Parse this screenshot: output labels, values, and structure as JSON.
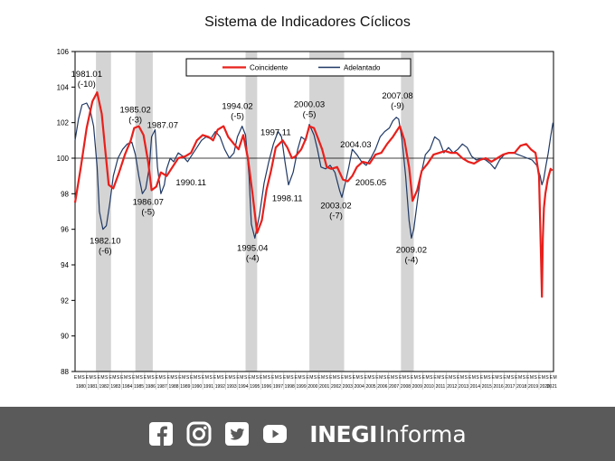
{
  "chart_data": {
    "type": "line",
    "title": "Sistema de Indicadores Cíclicos",
    "ylim": [
      88,
      106
    ],
    "yticks": [
      88,
      90,
      92,
      94,
      96,
      98,
      100,
      102,
      104,
      106
    ],
    "reference_line": 100,
    "legend": {
      "placement": "top-center",
      "entries": [
        "Coincidente",
        "Adelantado"
      ]
    },
    "colors": {
      "coincidente": "#e8201c",
      "adelantado": "#1f3864",
      "recession_band": "#d4d4d4"
    },
    "x_range": [
      1980.0,
      2021.25
    ],
    "years": [
      "1980",
      "1981",
      "1982",
      "1983",
      "1984",
      "1985",
      "1986",
      "1987",
      "1988",
      "1989",
      "1990",
      "1991",
      "1992",
      "1993",
      "1994",
      "1995",
      "1996",
      "1997",
      "1998",
      "1999",
      "2000",
      "2001",
      "2002",
      "2003",
      "2004",
      "2005",
      "2006",
      "2007",
      "2008",
      "2009",
      "2010",
      "2011",
      "2012",
      "2013",
      "2014",
      "2015",
      "2016",
      "2017",
      "2018",
      "2019",
      "2020",
      "2021"
    ],
    "month_letters": [
      "E",
      "M",
      "S"
    ],
    "last_year_letters": [
      "E",
      "M"
    ],
    "recession_bands": [
      [
        1981.8,
        1983.1
      ],
      [
        1985.2,
        1986.7
      ],
      [
        1994.7,
        1995.7
      ],
      [
        2000.2,
        2003.2
      ],
      [
        2008.1,
        2009.2
      ]
    ],
    "series": [
      {
        "name": "Coincidente",
        "x": [
          1980.0,
          1980.5,
          1981.0,
          1981.5,
          1981.9,
          1982.3,
          1982.6,
          1982.9,
          1983.3,
          1983.8,
          1984.3,
          1984.8,
          1985.1,
          1985.5,
          1985.9,
          1986.3,
          1986.6,
          1987.0,
          1987.4,
          1987.9,
          1988.4,
          1988.9,
          1989.5,
          1990.0,
          1990.5,
          1991.0,
          1991.5,
          1991.9,
          1992.3,
          1992.8,
          1993.2,
          1993.7,
          1994.1,
          1994.5,
          1994.9,
          1995.3,
          1995.7,
          1996.1,
          1996.5,
          1996.9,
          1997.3,
          1997.9,
          1998.3,
          1998.7,
          1999.0,
          1999.5,
          1999.9,
          2000.2,
          2000.6,
          2000.9,
          2001.3,
          2001.7,
          2002.1,
          2002.6,
          2003.1,
          2003.5,
          2003.9,
          2004.3,
          2004.8,
          2005.4,
          2005.9,
          2006.4,
          2006.9,
          2007.4,
          2007.7,
          2008.0,
          2008.4,
          2008.8,
          2009.1,
          2009.5,
          2009.9,
          2010.4,
          2010.9,
          2011.4,
          2011.9,
          2012.4,
          2012.9,
          2013.4,
          2013.9,
          2014.4,
          2014.9,
          2015.4,
          2015.9,
          2016.4,
          2016.9,
          2017.4,
          2017.9,
          2018.4,
          2018.9,
          2019.3,
          2019.7,
          2020.0,
          2020.15,
          2020.25,
          2020.33,
          2020.42,
          2020.55,
          2020.75,
          2021.0,
          2021.15
        ],
        "values": [
          97.5,
          99.5,
          101.7,
          103.2,
          103.7,
          102.5,
          100.5,
          98.5,
          98.3,
          99.2,
          100.2,
          101.0,
          101.7,
          101.8,
          101.3,
          99.8,
          98.2,
          98.4,
          99.2,
          99.0,
          99.5,
          100.0,
          100.1,
          100.3,
          101.0,
          101.3,
          101.2,
          101.0,
          101.6,
          101.8,
          101.2,
          100.8,
          100.5,
          101.3,
          100.0,
          98.0,
          95.8,
          96.5,
          98.2,
          99.3,
          100.6,
          101.0,
          100.6,
          100.0,
          100.1,
          100.5,
          101.1,
          101.8,
          101.7,
          101.2,
          100.5,
          99.5,
          99.4,
          99.5,
          98.8,
          98.7,
          99.0,
          99.5,
          99.8,
          99.7,
          100.2,
          100.3,
          100.8,
          101.2,
          101.5,
          101.8,
          101.0,
          99.5,
          97.6,
          98.2,
          99.3,
          99.7,
          100.2,
          100.3,
          100.4,
          100.3,
          100.3,
          100.0,
          99.8,
          99.7,
          99.9,
          100.0,
          99.8,
          100.0,
          100.2,
          100.3,
          100.3,
          100.7,
          100.8,
          100.5,
          100.3,
          99.0,
          95.0,
          92.2,
          95.5,
          97.2,
          98.0,
          98.8,
          99.4,
          99.3
        ]
      },
      {
        "name": "Adelantado",
        "x": [
          1980.0,
          1980.3,
          1980.6,
          1981.0,
          1981.3,
          1981.6,
          1981.9,
          1982.1,
          1982.4,
          1982.7,
          1983.0,
          1983.3,
          1983.7,
          1984.1,
          1984.5,
          1984.9,
          1985.2,
          1985.5,
          1985.8,
          1986.1,
          1986.4,
          1986.6,
          1986.9,
          1987.1,
          1987.4,
          1987.7,
          1987.9,
          1988.2,
          1988.5,
          1988.9,
          1989.3,
          1989.7,
          1990.1,
          1990.5,
          1990.9,
          1991.3,
          1991.7,
          1992.1,
          1992.5,
          1992.9,
          1993.3,
          1993.7,
          1994.0,
          1994.4,
          1994.7,
          1995.0,
          1995.2,
          1995.5,
          1995.9,
          1996.3,
          1996.7,
          1997.1,
          1997.5,
          1997.8,
          1998.1,
          1998.4,
          1998.8,
          1999.2,
          1999.5,
          1999.9,
          2000.2,
          2000.6,
          2000.9,
          2001.2,
          2001.6,
          2002.0,
          2002.4,
          2002.8,
          2003.0,
          2003.3,
          2003.6,
          2003.9,
          2004.3,
          2004.7,
          2005.1,
          2005.5,
          2005.9,
          2006.3,
          2006.7,
          2007.1,
          2007.4,
          2007.7,
          2007.9,
          2008.2,
          2008.5,
          2008.8,
          2009.0,
          2009.2,
          2009.5,
          2009.8,
          2010.2,
          2010.6,
          2011.0,
          2011.4,
          2011.8,
          2012.2,
          2012.6,
          2013.0,
          2013.4,
          2013.8,
          2014.2,
          2014.6,
          2015.0,
          2015.4,
          2015.8,
          2016.2,
          2016.6,
          2017.0,
          2017.4,
          2017.8,
          2018.2,
          2018.6,
          2019.0,
          2019.4,
          2019.8,
          2020.1,
          2020.25,
          2020.4,
          2020.6,
          2020.8,
          2021.0,
          2021.2
        ],
        "values": [
          101.0,
          102.2,
          103.0,
          103.1,
          102.7,
          101.8,
          99.5,
          97.0,
          96.0,
          96.2,
          97.5,
          99.0,
          100.0,
          100.5,
          100.8,
          100.9,
          100.2,
          99.0,
          98.0,
          98.3,
          99.5,
          101.2,
          101.6,
          99.5,
          98.0,
          98.5,
          99.4,
          100.0,
          99.8,
          100.3,
          100.1,
          99.8,
          100.2,
          100.6,
          101.0,
          101.2,
          101.1,
          101.5,
          101.2,
          100.5,
          100.0,
          100.3,
          101.2,
          101.8,
          101.3,
          99.0,
          96.3,
          95.5,
          96.8,
          98.6,
          99.8,
          100.8,
          101.5,
          101.2,
          99.8,
          98.5,
          99.2,
          100.5,
          101.2,
          101.0,
          101.9,
          101.3,
          100.5,
          99.5,
          99.4,
          99.6,
          99.2,
          98.2,
          97.8,
          98.6,
          99.5,
          100.5,
          100.2,
          99.8,
          99.6,
          100.0,
          100.5,
          101.2,
          101.5,
          101.7,
          102.1,
          102.3,
          102.2,
          101.0,
          99.0,
          96.5,
          95.5,
          96.0,
          97.5,
          99.0,
          100.2,
          100.5,
          101.2,
          101.0,
          100.3,
          100.6,
          100.3,
          100.5,
          100.8,
          100.6,
          100.1,
          99.9,
          100.0,
          99.9,
          99.7,
          99.4,
          99.9,
          100.2,
          100.3,
          100.3,
          100.2,
          100.1,
          100.0,
          99.9,
          99.6,
          99.0,
          98.5,
          98.8,
          99.6,
          100.3,
          101.2,
          102.0
        ]
      }
    ],
    "annotations": [
      {
        "date": "1981.01",
        "lag": "(-10)",
        "x": 1981.0,
        "y": 103.7,
        "pos": "above"
      },
      {
        "date": "1982.10",
        "lag": "(-6)",
        "x": 1982.6,
        "y": 96.0,
        "pos": "below"
      },
      {
        "date": "1985.02",
        "lag": "(-3)",
        "x": 1985.2,
        "y": 101.7,
        "pos": "above"
      },
      {
        "date": "1986.07",
        "lag": "(-5)",
        "x": 1986.3,
        "y": 98.2,
        "pos": "below"
      },
      {
        "date": "1987.07",
        "lag": "",
        "x": 1987.55,
        "y": 101.4,
        "pos": "above"
      },
      {
        "date": "1990.11",
        "lag": "",
        "x": 1990.0,
        "y": 99.3,
        "pos": "below"
      },
      {
        "date": "1994.02",
        "lag": "(-5)",
        "x": 1994.0,
        "y": 101.9,
        "pos": "above"
      },
      {
        "date": "1995.04",
        "lag": "(-4)",
        "x": 1995.3,
        "y": 95.6,
        "pos": "below"
      },
      {
        "date": "1997.11",
        "lag": "",
        "x": 1997.3,
        "y": 101.0,
        "pos": "above"
      },
      {
        "date": "1998.11",
        "lag": "",
        "x": 1998.3,
        "y": 98.4,
        "pos": "below"
      },
      {
        "date": "2000.03",
        "lag": "(-5)",
        "x": 2000.2,
        "y": 102.0,
        "pos": "above"
      },
      {
        "date": "2003.02",
        "lag": "(-7)",
        "x": 2002.5,
        "y": 98.0,
        "pos": "below"
      },
      {
        "date": "2004.03",
        "lag": "",
        "x": 2004.2,
        "y": 100.3,
        "pos": "above"
      },
      {
        "date": "2005.05",
        "lag": "",
        "x": 2005.5,
        "y": 99.3,
        "pos": "below"
      },
      {
        "date": "2007.08",
        "lag": "(-9)",
        "x": 2007.8,
        "y": 102.5,
        "pos": "above"
      },
      {
        "date": "2009.02",
        "lag": "(-4)",
        "x": 2009.0,
        "y": 95.5,
        "pos": "below"
      }
    ]
  },
  "footer": {
    "brand_bold": "INEGI",
    "brand_light": "Informa",
    "icons": [
      "facebook-icon",
      "instagram-icon",
      "twitter-icon",
      "youtube-icon"
    ]
  }
}
